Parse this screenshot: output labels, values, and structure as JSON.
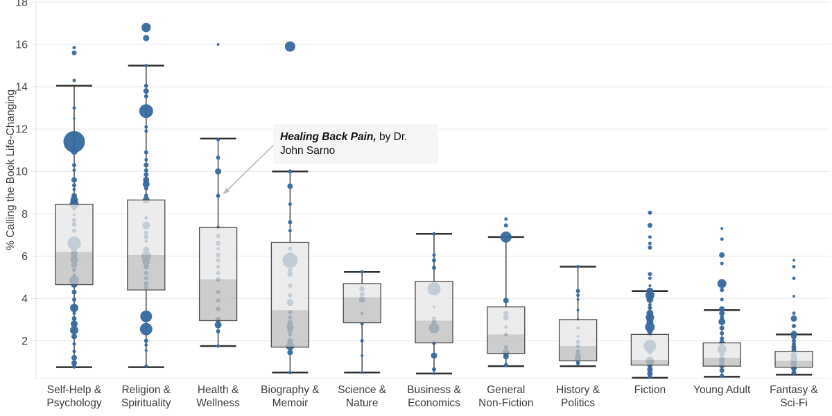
{
  "chart_data": {
    "type": "box",
    "subtype": "box-with-strip-bubbles",
    "title": "",
    "xlabel": "",
    "ylabel": "% Calling the Book Life-Changing",
    "ylim": [
      0,
      18.1
    ],
    "yticks": [
      2,
      4,
      6,
      8,
      10,
      12,
      14,
      16,
      18
    ],
    "grid": "horizontal-light",
    "legend": "none",
    "colors": {
      "dot": "#36699e",
      "box_upper_fill": "#e7e7e7",
      "box_lower_fill": "#bfbfbf",
      "box_border": "#4a4a4a",
      "whisker": "#454545",
      "cap": "#303030",
      "gridline": "#ececec",
      "axis_line": "#e0e0e0",
      "tick_label": "#444444",
      "annotation_bg": "#f5f5f5",
      "annotation_arrow": "#b9b9b9"
    },
    "annotation": {
      "bold": "Healing Back Pain,",
      "rest": " by Dr.",
      "line2": "John Sarno",
      "target_category": "Health & Wellness",
      "target_value": 8.85
    },
    "categories": [
      {
        "label_lines": [
          "Self-Help &",
          "Psychology"
        ],
        "box": {
          "whisker_low": 0.75,
          "q1": 4.65,
          "median": 6.2,
          "q3": 8.45,
          "whisker_high": 14.05
        },
        "points": [
          [
            15.85,
            2.5
          ],
          [
            15.6,
            3.5
          ],
          [
            14.3,
            2.5
          ],
          [
            13.0,
            2.5
          ],
          [
            12.5,
            1.8
          ],
          [
            11.4,
            15.5
          ],
          [
            10.95,
            5
          ],
          [
            10.3,
            3
          ],
          [
            10.05,
            2.5
          ],
          [
            9.6,
            4
          ],
          [
            9.35,
            3
          ],
          [
            9.15,
            2.5
          ],
          [
            8.85,
            4
          ],
          [
            8.65,
            5.5
          ],
          [
            8.45,
            6.5
          ],
          [
            8.25,
            3
          ],
          [
            7.95,
            2
          ],
          [
            7.7,
            3
          ],
          [
            7.5,
            3.5
          ],
          [
            7.2,
            3
          ],
          [
            6.6,
            9.5
          ],
          [
            6.3,
            4
          ],
          [
            6.1,
            5
          ],
          [
            5.85,
            5.5
          ],
          [
            5.6,
            4.5
          ],
          [
            5.35,
            3
          ],
          [
            5.1,
            2.5
          ],
          [
            4.85,
            7
          ],
          [
            4.65,
            4.5
          ],
          [
            4.3,
            3.5
          ],
          [
            3.95,
            3
          ],
          [
            3.55,
            6
          ],
          [
            3.3,
            2.5
          ],
          [
            3.05,
            3.5
          ],
          [
            2.8,
            5
          ],
          [
            2.5,
            6
          ],
          [
            2.2,
            4
          ],
          [
            1.85,
            2.5
          ],
          [
            1.5,
            2.5
          ],
          [
            1.2,
            4
          ],
          [
            0.95,
            4
          ],
          [
            0.78,
            3
          ]
        ]
      },
      {
        "label_lines": [
          "Religion &",
          "Spirituality"
        ],
        "box": {
          "whisker_low": 0.75,
          "q1": 4.4,
          "median": 6.05,
          "q3": 8.65,
          "whisker_high": 15.0
        },
        "points": [
          [
            16.8,
            6.7
          ],
          [
            16.3,
            4.5
          ],
          [
            15.0,
            2.5
          ],
          [
            14.05,
            3
          ],
          [
            13.8,
            4
          ],
          [
            13.55,
            3
          ],
          [
            12.85,
            10
          ],
          [
            12.1,
            2.5
          ],
          [
            11.9,
            2.5
          ],
          [
            10.9,
            3
          ],
          [
            10.55,
            2.5
          ],
          [
            10.3,
            3.5
          ],
          [
            10.05,
            3
          ],
          [
            9.85,
            3.5
          ],
          [
            9.6,
            4.5
          ],
          [
            9.4,
            5
          ],
          [
            9.2,
            3
          ],
          [
            8.85,
            3
          ],
          [
            8.65,
            5
          ],
          [
            7.8,
            2.5
          ],
          [
            7.45,
            5.5
          ],
          [
            7.1,
            3
          ],
          [
            6.9,
            3.5
          ],
          [
            6.7,
            2.5
          ],
          [
            6.3,
            4.5
          ],
          [
            6.0,
            7
          ],
          [
            5.75,
            5.5
          ],
          [
            5.5,
            4
          ],
          [
            5.2,
            3
          ],
          [
            4.95,
            3
          ],
          [
            4.7,
            3.5
          ],
          [
            4.5,
            3
          ],
          [
            3.15,
            8.5
          ],
          [
            2.55,
            9
          ],
          [
            2.0,
            3
          ],
          [
            1.8,
            2.5
          ],
          [
            1.55,
            2
          ],
          [
            0.8,
            2.5
          ]
        ]
      },
      {
        "label_lines": [
          "Health &",
          "Wellness"
        ],
        "box": {
          "whisker_low": 1.75,
          "q1": 2.95,
          "median": 4.9,
          "q3": 7.35,
          "whisker_high": 11.55
        },
        "points": [
          [
            16.0,
            2
          ],
          [
            11.5,
            2.5
          ],
          [
            10.65,
            3
          ],
          [
            10.0,
            4.5
          ],
          [
            8.85,
            3
          ],
          [
            7.35,
            2.5
          ],
          [
            6.95,
            3
          ],
          [
            6.6,
            3.5
          ],
          [
            6.35,
            2.5
          ],
          [
            6.05,
            3.5
          ],
          [
            5.8,
            3
          ],
          [
            5.5,
            3
          ],
          [
            5.2,
            3
          ],
          [
            4.9,
            3.5
          ],
          [
            4.3,
            3
          ],
          [
            3.9,
            3
          ],
          [
            3.5,
            3.5
          ],
          [
            3.0,
            4
          ],
          [
            2.75,
            5
          ],
          [
            2.45,
            3
          ],
          [
            1.75,
            2.5
          ]
        ]
      },
      {
        "label_lines": [
          "Biography &",
          "Memoir"
        ],
        "box": {
          "whisker_low": 0.5,
          "q1": 1.7,
          "median": 3.45,
          "q3": 6.65,
          "whisker_high": 10.0
        },
        "points": [
          [
            15.9,
            7.5
          ],
          [
            10.0,
            3
          ],
          [
            9.3,
            4
          ],
          [
            8.45,
            2.5
          ],
          [
            7.6,
            3
          ],
          [
            7.2,
            2.5
          ],
          [
            6.35,
            3
          ],
          [
            6.05,
            4
          ],
          [
            5.8,
            11
          ],
          [
            5.35,
            3
          ],
          [
            5.15,
            4
          ],
          [
            4.6,
            3
          ],
          [
            4.15,
            3
          ],
          [
            3.8,
            5
          ],
          [
            3.35,
            3
          ],
          [
            3.1,
            3
          ],
          [
            2.85,
            4
          ],
          [
            2.65,
            5
          ],
          [
            2.5,
            4
          ],
          [
            2.3,
            3
          ],
          [
            2.0,
            4
          ],
          [
            1.75,
            6
          ],
          [
            1.45,
            4
          ],
          [
            0.5,
            2.5
          ]
        ]
      },
      {
        "label_lines": [
          "Science &",
          "Nature"
        ],
        "box": {
          "whisker_low": 0.5,
          "q1": 2.85,
          "median": 4.05,
          "q3": 4.7,
          "whisker_high": 5.25
        },
        "points": [
          [
            5.25,
            2.5
          ],
          [
            4.45,
            4
          ],
          [
            4.2,
            3.5
          ],
          [
            3.95,
            4.5
          ],
          [
            3.3,
            2.5
          ],
          [
            2.8,
            2.5
          ],
          [
            2.0,
            2.5
          ],
          [
            1.3,
            2
          ],
          [
            0.5,
            2
          ]
        ]
      },
      {
        "label_lines": [
          "Business &",
          "Economics"
        ],
        "box": {
          "whisker_low": 0.45,
          "q1": 1.9,
          "median": 2.95,
          "q3": 4.8,
          "whisker_high": 7.05
        },
        "points": [
          [
            7.05,
            2.5
          ],
          [
            6.05,
            2.5
          ],
          [
            5.8,
            3
          ],
          [
            5.45,
            3
          ],
          [
            4.45,
            9.5
          ],
          [
            3.6,
            2
          ],
          [
            3.05,
            3
          ],
          [
            2.9,
            3.5
          ],
          [
            2.6,
            7.5
          ],
          [
            1.9,
            3
          ],
          [
            1.3,
            4.5
          ],
          [
            0.65,
            3
          ],
          [
            0.45,
            2
          ]
        ]
      },
      {
        "label_lines": [
          "General",
          "Non-Fiction"
        ],
        "box": {
          "whisker_low": 0.8,
          "q1": 1.4,
          "median": 2.3,
          "q3": 3.6,
          "whisker_high": 6.9
        },
        "points": [
          [
            7.75,
            2.5
          ],
          [
            7.45,
            3
          ],
          [
            6.9,
            8
          ],
          [
            3.9,
            4
          ],
          [
            3.3,
            3.5
          ],
          [
            3.1,
            4
          ],
          [
            2.65,
            2.5
          ],
          [
            2.3,
            3
          ],
          [
            1.7,
            3
          ],
          [
            1.45,
            5
          ],
          [
            1.25,
            4
          ],
          [
            0.85,
            3
          ]
        ]
      },
      {
        "label_lines": [
          "History &",
          "Politics"
        ],
        "box": {
          "whisker_low": 0.8,
          "q1": 1.05,
          "median": 1.75,
          "q3": 3.0,
          "whisker_high": 5.5
        },
        "points": [
          [
            5.5,
            2.5
          ],
          [
            4.35,
            3
          ],
          [
            4.15,
            2.5
          ],
          [
            3.95,
            2
          ],
          [
            3.45,
            2
          ],
          [
            3.0,
            2
          ],
          [
            2.6,
            2.5
          ],
          [
            2.2,
            2
          ],
          [
            1.95,
            3
          ],
          [
            1.75,
            3
          ],
          [
            1.5,
            3
          ],
          [
            1.3,
            4
          ],
          [
            1.15,
            4.5
          ],
          [
            0.95,
            3
          ]
        ]
      },
      {
        "label_lines": [
          "Fiction"
        ],
        "box": {
          "whisker_low": 0.25,
          "q1": 0.85,
          "median": 1.1,
          "q3": 2.3,
          "whisker_high": 4.35
        },
        "points": [
          [
            8.05,
            3
          ],
          [
            7.45,
            3.5
          ],
          [
            6.9,
            2.5
          ],
          [
            6.6,
            2.5
          ],
          [
            6.4,
            3
          ],
          [
            5.15,
            3
          ],
          [
            4.95,
            2.5
          ],
          [
            4.6,
            2
          ],
          [
            4.35,
            5
          ],
          [
            4.15,
            6.5
          ],
          [
            3.95,
            5
          ],
          [
            3.7,
            2.5
          ],
          [
            3.55,
            3
          ],
          [
            3.3,
            5
          ],
          [
            3.1,
            6
          ],
          [
            2.9,
            5
          ],
          [
            2.65,
            7
          ],
          [
            2.45,
            4
          ],
          [
            2.3,
            3
          ],
          [
            1.75,
            9
          ],
          [
            1.45,
            3
          ],
          [
            1.05,
            6
          ],
          [
            0.85,
            4
          ],
          [
            0.65,
            4
          ],
          [
            0.45,
            4
          ],
          [
            0.3,
            3
          ]
        ]
      },
      {
        "label_lines": [
          "Young Adult"
        ],
        "box": {
          "whisker_low": 0.3,
          "q1": 0.8,
          "median": 1.2,
          "q3": 1.9,
          "whisker_high": 3.45
        },
        "points": [
          [
            7.3,
            2
          ],
          [
            6.8,
            2.5
          ],
          [
            6.05,
            4
          ],
          [
            5.65,
            2.5
          ],
          [
            4.7,
            6.5
          ],
          [
            4.4,
            3
          ],
          [
            3.95,
            2.5
          ],
          [
            3.5,
            4
          ],
          [
            3.3,
            4
          ],
          [
            3.1,
            3
          ],
          [
            2.9,
            5
          ],
          [
            2.6,
            3.5
          ],
          [
            2.35,
            3
          ],
          [
            2.1,
            3
          ],
          [
            1.9,
            4
          ],
          [
            1.6,
            6.5
          ],
          [
            1.35,
            3.5
          ],
          [
            1.1,
            4.5
          ],
          [
            0.85,
            4.5
          ],
          [
            0.6,
            3.5
          ],
          [
            0.35,
            3
          ]
        ]
      },
      {
        "label_lines": [
          "Fantasy &",
          "Sci-Fi"
        ],
        "box": {
          "whisker_low": 0.4,
          "q1": 0.75,
          "median": 1.05,
          "q3": 1.5,
          "whisker_high": 2.3
        },
        "points": [
          [
            5.8,
            2
          ],
          [
            5.5,
            2.5
          ],
          [
            4.95,
            2.5
          ],
          [
            4.1,
            2
          ],
          [
            3.3,
            2.5
          ],
          [
            3.05,
            4.5
          ],
          [
            2.7,
            3
          ],
          [
            2.35,
            4
          ],
          [
            2.2,
            4
          ],
          [
            2.0,
            3
          ],
          [
            1.85,
            3
          ],
          [
            1.7,
            3.5
          ],
          [
            1.55,
            3.5
          ],
          [
            1.3,
            4.5
          ],
          [
            1.1,
            5
          ],
          [
            0.9,
            4.5
          ],
          [
            0.7,
            4
          ],
          [
            0.5,
            3.5
          ]
        ]
      }
    ]
  }
}
